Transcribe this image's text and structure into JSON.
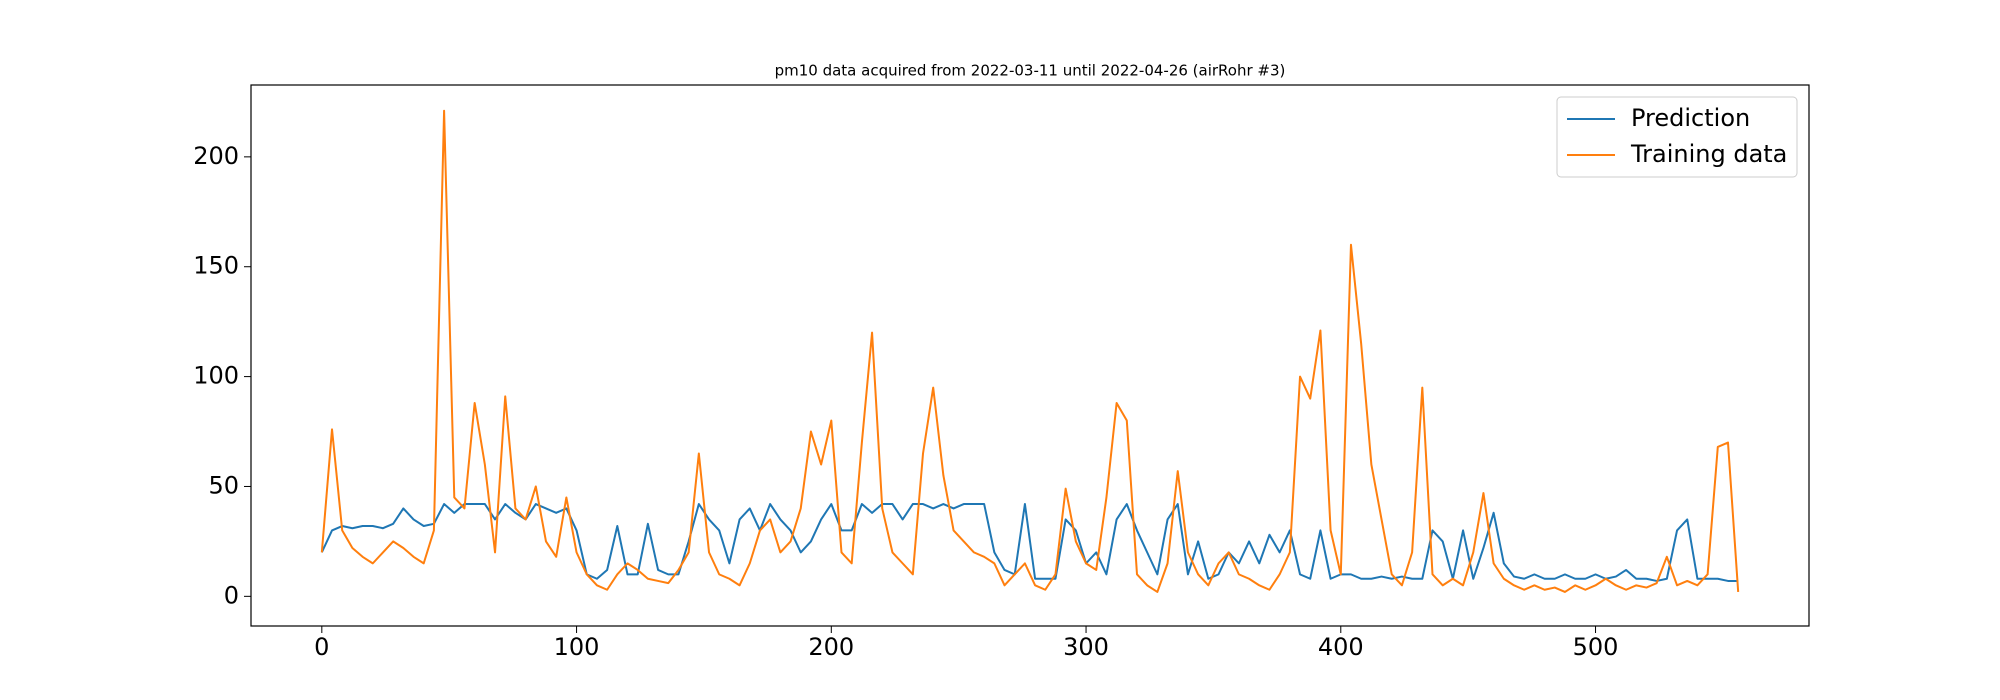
{
  "chart_data": {
    "type": "line",
    "title": "pm10 data acquired from 2022-03-11 until 2022-04-26 (airRohr #3)",
    "x": [
      0,
      4,
      8,
      12,
      16,
      20,
      24,
      28,
      32,
      36,
      40,
      44,
      48,
      52,
      56,
      60,
      64,
      68,
      72,
      76,
      80,
      84,
      88,
      92,
      96,
      100,
      104,
      108,
      112,
      116,
      120,
      124,
      128,
      132,
      136,
      140,
      144,
      148,
      152,
      156,
      160,
      164,
      168,
      172,
      176,
      180,
      184,
      188,
      192,
      196,
      200,
      204,
      208,
      212,
      216,
      220,
      224,
      228,
      232,
      236,
      240,
      244,
      248,
      252,
      256,
      260,
      264,
      268,
      272,
      276,
      280,
      284,
      288,
      292,
      296,
      300,
      304,
      308,
      312,
      316,
      320,
      324,
      328,
      332,
      336,
      340,
      344,
      348,
      352,
      356,
      360,
      364,
      368,
      372,
      376,
      380,
      384,
      388,
      392,
      396,
      400,
      404,
      408,
      412,
      416,
      420,
      424,
      428,
      432,
      436,
      440,
      444,
      448,
      452,
      456,
      460,
      464,
      468,
      472,
      476,
      480,
      484,
      488,
      492,
      496,
      500,
      504,
      508,
      512,
      516,
      520,
      524,
      528,
      532,
      536,
      540,
      544,
      548,
      552,
      556
    ],
    "series": [
      {
        "name": "Prediction",
        "color": "#1f77b4",
        "values": [
          20,
          30,
          32,
          31,
          32,
          32,
          31,
          33,
          40,
          35,
          32,
          33,
          42,
          38,
          42,
          42,
          42,
          35,
          42,
          38,
          35,
          42,
          40,
          38,
          40,
          30,
          10,
          8,
          12,
          32,
          10,
          10,
          33,
          12,
          10,
          10,
          25,
          42,
          35,
          30,
          15,
          35,
          40,
          30,
          42,
          35,
          30,
          20,
          25,
          35,
          42,
          30,
          30,
          42,
          38,
          42,
          42,
          35,
          42,
          42,
          40,
          42,
          40,
          42,
          42,
          42,
          20,
          12,
          10,
          42,
          8,
          8,
          8,
          35,
          30,
          15,
          20,
          10,
          35,
          42,
          30,
          20,
          10,
          35,
          42,
          10,
          25,
          8,
          10,
          20,
          15,
          25,
          15,
          28,
          20,
          30,
          10,
          8,
          30,
          8,
          10,
          10,
          8,
          8,
          9,
          8,
          9,
          8,
          8,
          30,
          25,
          8,
          30,
          8,
          22,
          38,
          15,
          9,
          8,
          10,
          8,
          8,
          10,
          8,
          8,
          10,
          8,
          9,
          12,
          8,
          8,
          7,
          8,
          30,
          35,
          8,
          8,
          8,
          7,
          7
        ]
      },
      {
        "name": "Training data",
        "color": "#ff7f0e",
        "values": [
          20,
          76,
          30,
          22,
          18,
          15,
          20,
          25,
          22,
          18,
          15,
          30,
          221,
          45,
          40,
          88,
          60,
          20,
          91,
          40,
          35,
          50,
          25,
          18,
          45,
          20,
          10,
          5,
          3,
          10,
          15,
          12,
          8,
          7,
          6,
          12,
          20,
          65,
          20,
          10,
          8,
          5,
          15,
          30,
          35,
          20,
          25,
          40,
          75,
          60,
          80,
          20,
          15,
          70,
          120,
          40,
          20,
          15,
          10,
          65,
          95,
          55,
          30,
          25,
          20,
          18,
          15,
          5,
          10,
          15,
          5,
          3,
          10,
          49,
          25,
          15,
          12,
          45,
          88,
          80,
          10,
          5,
          2,
          15,
          57,
          20,
          10,
          5,
          15,
          20,
          10,
          8,
          5,
          3,
          10,
          20,
          100,
          90,
          121,
          30,
          10,
          160,
          115,
          60,
          35,
          10,
          5,
          20,
          95,
          10,
          5,
          8,
          5,
          20,
          47,
          15,
          8,
          5,
          3,
          5,
          3,
          4,
          2,
          5,
          3,
          5,
          8,
          5,
          3,
          5,
          4,
          6,
          18,
          5,
          7,
          5,
          10,
          68,
          70,
          2
        ]
      }
    ],
    "xlim": [
      -27.8,
      583.8
    ],
    "ylim": [
      -13.5,
      232.7
    ],
    "xticks": [
      0,
      100,
      200,
      300,
      400,
      500
    ],
    "yticks": [
      0,
      50,
      100,
      150,
      200
    ],
    "legend": "upper right"
  }
}
